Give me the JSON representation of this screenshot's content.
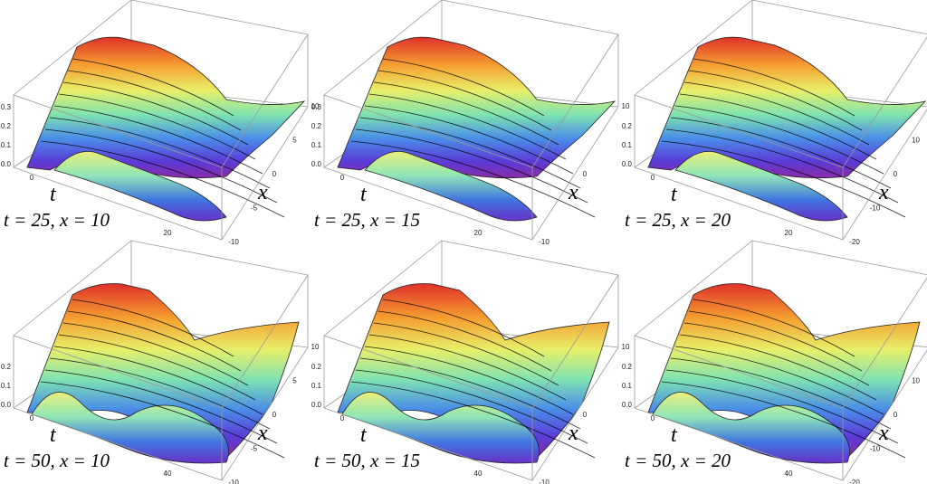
{
  "panels": [
    {
      "caption": "t = 25, x = 10",
      "t_label": "t",
      "x_label": "x",
      "z_ticks": [
        "0.0",
        "0.1",
        "0.2",
        "0.3"
      ],
      "t_ticks": [
        "0",
        "20"
      ],
      "x_ticks": [
        "10",
        "5",
        "0",
        "-5",
        "-10"
      ]
    },
    {
      "caption": "t = 25, x = 15",
      "t_label": "t",
      "x_label": "x",
      "z_ticks": [
        "0.0",
        "0.1",
        "0.2",
        "0.3"
      ],
      "t_ticks": [
        "0",
        "20"
      ],
      "x_ticks": [
        "10",
        "0",
        "-10"
      ]
    },
    {
      "caption": "t = 25, x = 20",
      "t_label": "t",
      "x_label": "x",
      "z_ticks": [
        "0.0",
        "0.1",
        "0.2"
      ],
      "t_ticks": [
        "0",
        "20"
      ],
      "x_ticks": [
        "20",
        "10",
        "0",
        "-10",
        "-20"
      ]
    },
    {
      "caption": "t = 50, x = 10",
      "t_label": "t",
      "x_label": "x",
      "z_ticks": [
        "0.0",
        "0.1",
        "0.2"
      ],
      "t_ticks": [
        "0",
        "40"
      ],
      "x_ticks": [
        "10",
        "5",
        "0",
        "-5",
        "-10"
      ]
    },
    {
      "caption": "t = 50, x = 15",
      "t_label": "t",
      "x_label": "x",
      "z_ticks": [
        "0.0",
        "0.1",
        "0.2"
      ],
      "t_ticks": [
        "0",
        "40"
      ],
      "x_ticks": [
        "10",
        "0",
        "-10"
      ]
    },
    {
      "caption": "t = 50, x = 20",
      "t_label": "t",
      "x_label": "x",
      "z_ticks": [
        "0.0",
        "0.1",
        "0.2"
      ],
      "t_ticks": [
        "0",
        "40"
      ],
      "x_ticks": [
        "20",
        "10",
        "0",
        "-10",
        "-20"
      ]
    }
  ]
}
